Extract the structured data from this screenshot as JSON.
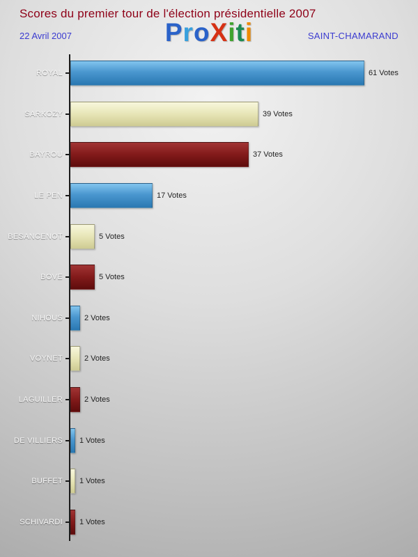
{
  "header": {
    "title": "Scores du premier tour de l'élection présidentielle 2007",
    "date": "22 Avril 2007",
    "location": "SAINT-CHAMARAND",
    "logo_letters": [
      {
        "ch": "P",
        "color": "#2a62c9"
      },
      {
        "ch": "r",
        "color": "#38a0dd"
      },
      {
        "ch": "o",
        "color": "#2a62c9"
      },
      {
        "ch": "X",
        "color": "#d63114"
      },
      {
        "ch": "i",
        "color": "#3fa32e"
      },
      {
        "ch": "t",
        "color": "#1c8a52"
      },
      {
        "ch": "i",
        "color": "#ef8a00"
      }
    ]
  },
  "chart_data": {
    "type": "bar",
    "orientation": "horizontal",
    "title": "Scores du premier tour de l'élection présidentielle 2007",
    "unit": "Votes",
    "xlim": [
      0,
      61
    ],
    "grid": false,
    "legend": "none",
    "categories": [
      "ROYAL",
      "SARKOZY",
      "BAYROU",
      "LE PEN",
      "BESANCENOT",
      "BOVE",
      "NIHOUS",
      "VOYNET",
      "LAGUILLER",
      "DE VILLIERS",
      "BUFFET",
      "SCHIVARDI"
    ],
    "values": [
      61,
      39,
      37,
      17,
      5,
      5,
      2,
      2,
      2,
      1,
      1,
      1
    ],
    "rows": [
      {
        "name": "ROYAL",
        "votes": 61,
        "label": "61 Votes",
        "color": "blue"
      },
      {
        "name": "SARKOZY",
        "votes": 39,
        "label": "39 Votes",
        "color": "cream"
      },
      {
        "name": "BAYROU",
        "votes": 37,
        "label": "37 Votes",
        "color": "red"
      },
      {
        "name": "LE PEN",
        "votes": 17,
        "label": "17 Votes",
        "color": "blue"
      },
      {
        "name": "BESANCENOT",
        "votes": 5,
        "label": "5 Votes",
        "color": "cream"
      },
      {
        "name": "BOVE",
        "votes": 5,
        "label": "5 Votes",
        "color": "red"
      },
      {
        "name": "NIHOUS",
        "votes": 2,
        "label": "2 Votes",
        "color": "blue"
      },
      {
        "name": "VOYNET",
        "votes": 2,
        "label": "2 Votes",
        "color": "cream"
      },
      {
        "name": "LAGUILLER",
        "votes": 2,
        "label": "2 Votes",
        "color": "red"
      },
      {
        "name": "DE VILLIERS",
        "votes": 1,
        "label": "1 Votes",
        "color": "blue"
      },
      {
        "name": "BUFFET",
        "votes": 1,
        "label": "1 Votes",
        "color": "cream"
      },
      {
        "name": "SCHIVARDI",
        "votes": 1,
        "label": "1 Votes",
        "color": "red"
      }
    ],
    "palette": {
      "blue": {
        "top": "#82c4ee",
        "bottom": "#2a78b2"
      },
      "cream": {
        "top": "#f8f7dc",
        "bottom": "#cecb93"
      },
      "red": {
        "top": "#a13434",
        "bottom": "#5e0c0c"
      },
      "title_text": "#8e0017",
      "accent_text": "#3b3bd0",
      "axis": "#1a1a1a"
    }
  }
}
